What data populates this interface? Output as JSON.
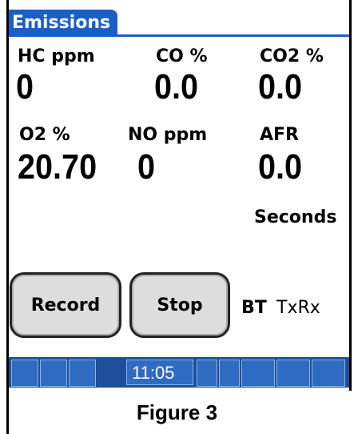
{
  "header": {
    "tab": "Emissions"
  },
  "fields": [
    {
      "label": "HC ppm",
      "value": "0"
    },
    {
      "label": "CO %",
      "value": "0.0"
    },
    {
      "label": "CO2 %",
      "value": "0.0"
    },
    {
      "label": "O2 %",
      "value": "20.70"
    },
    {
      "label": "NO ppm",
      "value": "0"
    },
    {
      "label": "AFR",
      "value": "0.0"
    }
  ],
  "seconds": "Seconds",
  "buttons": [
    "Record",
    "Stop"
  ],
  "status": {
    "bt": "BT",
    "txrx": "TxRx"
  },
  "taskbar": {
    "time": "11:05"
  },
  "caption": "Figure 3"
}
